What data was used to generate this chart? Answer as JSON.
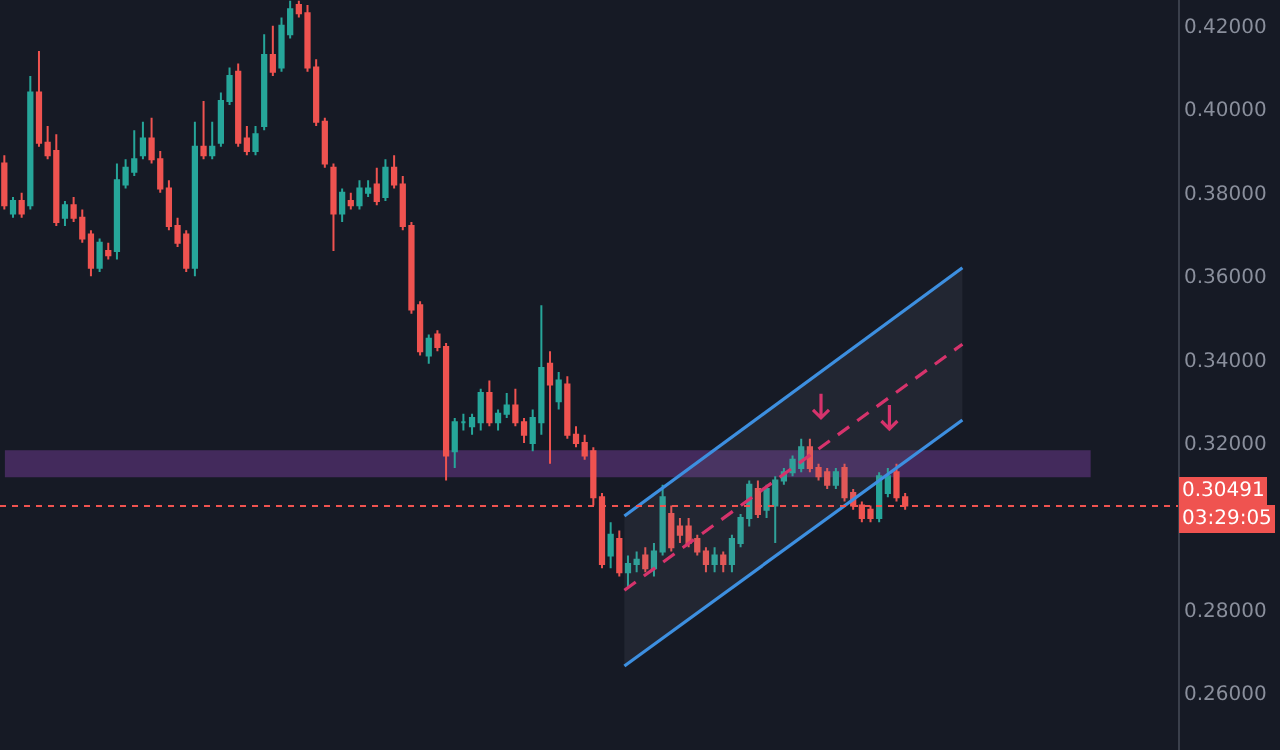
{
  "chart_data": {
    "type": "candlestick",
    "categories": [
      null,
      null,
      null,
      null,
      null,
      null,
      null,
      null,
      null,
      null,
      null,
      null,
      null,
      null,
      null,
      null,
      null,
      null,
      null,
      null,
      null,
      null,
      null,
      null,
      null,
      null,
      null,
      null,
      null,
      null,
      null,
      null,
      null,
      null,
      null,
      null,
      null,
      null,
      null,
      null,
      null,
      null,
      null,
      null,
      null,
      null,
      null,
      null,
      null,
      null,
      null,
      null,
      null,
      null,
      null,
      null,
      null,
      null,
      null,
      null,
      null,
      null,
      null,
      null,
      null,
      null,
      null,
      null,
      null,
      null,
      null,
      null,
      null,
      null,
      null,
      null,
      null,
      null,
      null,
      null,
      null,
      null,
      null,
      null,
      null,
      null,
      null,
      null,
      null,
      null,
      null,
      null,
      null,
      null,
      null,
      null,
      null,
      null,
      null,
      null,
      null,
      null,
      null,
      null,
      null,
      null,
      null,
      null,
      null,
      null,
      null,
      null,
      null,
      null,
      null,
      null,
      null,
      null,
      null,
      null,
      null,
      null,
      null,
      null,
      null,
      null,
      null,
      null,
      null,
      null,
      null,
      null,
      null,
      null,
      null,
      null
    ],
    "ohlc": [
      [
        0.387,
        0.389,
        0.376,
        0.377
      ],
      [
        0.375,
        0.379,
        0.374,
        0.378
      ],
      [
        0.378,
        0.38,
        0.374,
        0.375
      ],
      [
        0.377,
        0.408,
        0.376,
        0.404
      ],
      [
        0.404,
        0.414,
        0.391,
        0.392
      ],
      [
        0.392,
        0.396,
        0.388,
        0.389
      ],
      [
        0.39,
        0.394,
        0.372,
        0.373
      ],
      [
        0.374,
        0.378,
        0.372,
        0.377
      ],
      [
        0.377,
        0.379,
        0.373,
        0.374
      ],
      [
        0.374,
        0.376,
        0.368,
        0.369
      ],
      [
        0.37,
        0.371,
        0.36,
        0.362
      ],
      [
        0.362,
        0.369,
        0.361,
        0.368
      ],
      [
        0.366,
        0.368,
        0.364,
        0.365
      ],
      [
        0.366,
        0.387,
        0.364,
        0.383
      ],
      [
        0.382,
        0.388,
        0.381,
        0.386
      ],
      [
        0.385,
        0.395,
        0.384,
        0.388
      ],
      [
        0.389,
        0.397,
        0.388,
        0.393
      ],
      [
        0.393,
        0.398,
        0.387,
        0.388
      ],
      [
        0.388,
        0.39,
        0.38,
        0.381
      ],
      [
        0.381,
        0.383,
        0.371,
        0.372
      ],
      [
        0.372,
        0.374,
        0.367,
        0.368
      ],
      [
        0.37,
        0.371,
        0.361,
        0.362
      ],
      [
        0.362,
        0.397,
        0.36,
        0.391
      ],
      [
        0.391,
        0.402,
        0.388,
        0.389
      ],
      [
        0.389,
        0.397,
        0.388,
        0.391
      ],
      [
        0.392,
        0.404,
        0.391,
        0.402
      ],
      [
        0.402,
        0.41,
        0.401,
        0.408
      ],
      [
        0.409,
        0.411,
        0.391,
        0.392
      ],
      [
        0.393,
        0.396,
        0.389,
        0.39
      ],
      [
        0.39,
        0.396,
        0.389,
        0.394
      ],
      [
        0.396,
        0.418,
        0.395,
        0.413
      ],
      [
        0.413,
        0.42,
        0.408,
        0.409
      ],
      [
        0.41,
        0.422,
        0.409,
        0.42
      ],
      [
        0.418,
        0.426,
        0.417,
        0.424
      ],
      [
        0.425,
        0.426,
        0.422,
        0.423
      ],
      [
        0.423,
        0.425,
        0.409,
        0.41
      ],
      [
        0.41,
        0.412,
        0.396,
        0.397
      ],
      [
        0.397,
        0.398,
        0.386,
        0.387
      ],
      [
        0.386,
        0.387,
        0.366,
        0.375
      ],
      [
        0.375,
        0.381,
        0.373,
        0.38
      ],
      [
        0.378,
        0.38,
        0.376,
        0.377
      ],
      [
        0.377,
        0.383,
        0.376,
        0.381
      ],
      [
        0.38,
        0.383,
        0.379,
        0.381
      ],
      [
        0.382,
        0.386,
        0.377,
        0.378
      ],
      [
        0.379,
        0.388,
        0.378,
        0.386
      ],
      [
        0.386,
        0.389,
        0.381,
        0.382
      ],
      [
        0.382,
        0.384,
        0.371,
        0.372
      ],
      [
        0.372,
        0.373,
        0.351,
        0.352
      ],
      [
        0.353,
        0.354,
        0.341,
        0.342
      ],
      [
        0.341,
        0.346,
        0.339,
        0.345
      ],
      [
        0.346,
        0.347,
        0.342,
        0.343
      ],
      [
        0.343,
        0.344,
        0.311,
        0.317
      ],
      [
        0.318,
        0.326,
        0.314,
        0.325
      ],
      [
        0.325,
        0.327,
        0.323,
        0.325
      ],
      [
        0.324,
        0.327,
        0.322,
        0.326
      ],
      [
        0.325,
        0.333,
        0.323,
        0.332
      ],
      [
        0.332,
        0.335,
        0.324,
        0.325
      ],
      [
        0.325,
        0.328,
        0.323,
        0.327
      ],
      [
        0.327,
        0.332,
        0.326,
        0.329
      ],
      [
        0.329,
        0.333,
        0.324,
        0.325
      ],
      [
        0.325,
        0.326,
        0.32,
        0.322
      ],
      [
        0.32,
        0.328,
        0.318,
        0.326
      ],
      [
        0.325,
        0.353,
        0.322,
        0.338
      ],
      [
        0.339,
        0.342,
        0.315,
        0.334
      ],
      [
        0.33,
        0.337,
        0.328,
        0.335
      ],
      [
        0.334,
        0.336,
        0.321,
        0.322
      ],
      [
        0.322,
        0.324,
        0.319,
        0.32
      ],
      [
        0.32,
        0.322,
        0.316,
        0.317
      ],
      [
        0.318,
        0.319,
        0.305,
        0.307
      ],
      [
        0.307,
        0.308,
        0.29,
        0.291
      ],
      [
        0.293,
        0.301,
        0.29,
        0.298
      ],
      [
        0.297,
        0.299,
        0.288,
        0.289
      ],
      [
        0.289,
        0.293,
        0.285,
        0.291
      ],
      [
        0.291,
        0.294,
        0.289,
        0.292
      ],
      [
        0.293,
        0.295,
        0.289,
        0.29
      ],
      [
        0.29,
        0.296,
        0.288,
        0.294
      ],
      [
        0.294,
        0.31,
        0.293,
        0.307
      ],
      [
        0.303,
        0.305,
        0.294,
        0.295
      ],
      [
        0.3,
        0.302,
        0.296,
        0.298
      ],
      [
        0.3,
        0.302,
        0.295,
        0.296
      ],
      [
        0.297,
        0.298,
        0.293,
        0.294
      ],
      [
        0.294,
        0.295,
        0.289,
        0.291
      ],
      [
        0.291,
        0.295,
        0.289,
        0.293
      ],
      [
        0.293,
        0.294,
        0.289,
        0.291
      ],
      [
        0.291,
        0.298,
        0.289,
        0.297
      ],
      [
        0.296,
        0.303,
        0.295,
        0.302
      ],
      [
        0.302,
        0.311,
        0.3,
        0.31
      ],
      [
        0.309,
        0.311,
        0.302,
        0.303
      ],
      [
        0.304,
        0.31,
        0.302,
        0.309
      ],
      [
        0.305,
        0.312,
        0.296,
        0.311
      ],
      [
        0.311,
        0.314,
        0.31,
        0.313
      ],
      [
        0.313,
        0.317,
        0.312,
        0.316
      ],
      [
        0.314,
        0.321,
        0.313,
        0.319
      ],
      [
        0.319,
        0.321,
        0.313,
        0.314
      ],
      [
        0.314,
        0.315,
        0.311,
        0.312
      ],
      [
        0.313,
        0.314,
        0.309,
        0.31
      ],
      [
        0.31,
        0.314,
        0.309,
        0.313
      ],
      [
        0.314,
        0.315,
        0.306,
        0.307
      ],
      [
        0.308,
        0.309,
        0.304,
        0.305
      ],
      [
        0.305,
        0.306,
        0.301,
        0.302
      ],
      [
        0.304,
        0.305,
        0.301,
        0.302
      ],
      [
        0.302,
        0.313,
        0.301,
        0.312
      ],
      [
        0.308,
        0.314,
        0.307,
        0.312
      ],
      [
        0.313,
        0.315,
        0.306,
        0.307
      ],
      [
        0.307,
        0.308,
        0.304,
        0.305
      ],
      null,
      null,
      null,
      null,
      null,
      null,
      null,
      null,
      null,
      null,
      null,
      null,
      null,
      null,
      null,
      null,
      null,
      null,
      null,
      null,
      null,
      null,
      null,
      null,
      null,
      null,
      null,
      null,
      null,
      null,
      null
    ],
    "colors": [
      "#ef5350",
      "#26a69a",
      "#ef5350",
      "#26a69a",
      "#ef5350",
      "#ef5350",
      "#ef5350",
      "#26a69a",
      "#ef5350",
      "#ef5350",
      "#ef5350",
      "#26a69a",
      "#ef5350",
      "#26a69a",
      "#26a69a",
      "#26a69a",
      "#26a69a",
      "#ef5350",
      "#ef5350",
      "#ef5350",
      "#ef5350",
      "#ef5350",
      "#26a69a",
      "#ef5350",
      "#26a69a",
      "#26a69a",
      "#26a69a",
      "#ef5350",
      "#ef5350",
      "#26a69a",
      "#26a69a",
      "#ef5350",
      "#26a69a",
      "#26a69a",
      "#ef5350",
      "#ef5350",
      "#ef5350",
      "#ef5350",
      "#ef5350",
      "#26a69a",
      "#ef5350",
      "#26a69a",
      "#26a69a",
      "#ef5350",
      "#26a69a",
      "#ef5350",
      "#ef5350",
      "#ef5350",
      "#ef5350",
      "#26a69a",
      "#ef5350",
      "#ef5350",
      "#26a69a",
      "#26a69a",
      "#26a69a",
      "#26a69a",
      "#ef5350",
      "#26a69a",
      "#26a69a",
      "#ef5350",
      "#ef5350",
      "#26a69a",
      "#26a69a",
      "#ef5350",
      "#26a69a",
      "#ef5350",
      "#ef5350",
      "#ef5350",
      "#ef5350",
      "#ef5350",
      "#26a69a",
      "#ef5350",
      "#26a69a",
      "#26a69a",
      "#ef5350",
      "#26a69a",
      "#26a69a",
      "#ef5350",
      "#ef5350",
      "#ef5350",
      "#ef5350",
      "#ef5350",
      "#26a69a",
      "#ef5350",
      "#26a69a",
      "#26a69a",
      "#26a69a",
      "#ef5350",
      "#26a69a",
      "#26a69a",
      "#26a69a",
      "#26a69a",
      "#26a69a",
      "#ef5350",
      "#ef5350",
      "#ef5350",
      "#26a69a",
      "#ef5350",
      "#ef5350",
      "#ef5350",
      "#ef5350",
      "#26a69a",
      "#26a69a",
      "#ef5350",
      "#ef5350",
      null,
      null,
      null,
      null,
      null,
      null,
      null,
      null,
      null,
      null,
      null,
      null,
      null,
      null,
      null,
      null,
      null,
      null,
      null,
      null,
      null,
      null,
      null,
      null,
      null,
      null,
      null,
      null,
      null,
      null,
      null
    ],
    "ylim": [
      0.2464,
      0.4262
    ],
    "yticks": [
      {
        "value": 0.26,
        "label": "0.26000"
      },
      {
        "value": 0.28,
        "label": "0.28000"
      },
      {
        "value": 0.32,
        "label": "0.32000"
      },
      {
        "value": 0.34,
        "label": "0.34000"
      },
      {
        "value": 0.36,
        "label": "0.36000"
      },
      {
        "value": 0.38,
        "label": "0.38000"
      },
      {
        "value": 0.4,
        "label": "0.40000"
      },
      {
        "value": 0.42,
        "label": "0.42000"
      }
    ],
    "tick_labels": "y",
    "ref_lines": [
      {
        "axis": "y",
        "value": 0.30491,
        "label": "0.30491",
        "color": "#ef5350",
        "line_style": "dotted"
      }
    ],
    "bands": [
      {
        "axis": "y",
        "from": 0.312,
        "to": 0.318,
        "color": "#7b3fa0"
      }
    ],
    "annotations": [
      "03:29:05"
    ],
    "grid": false
  }
}
